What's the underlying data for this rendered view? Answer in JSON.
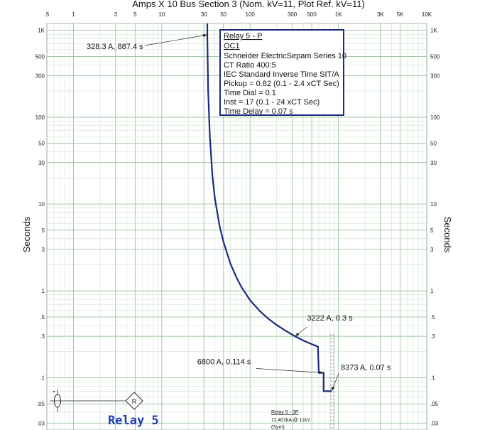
{
  "chart_data": {
    "type": "line",
    "title": "Amps  X  10   Bus Section 3 (Nom. kV=11, Plot Ref. kV=11)",
    "ylabel": "Seconds",
    "x_scale": "log",
    "y_scale": "log",
    "xlim": [
      0.5,
      10000
    ],
    "ylim": [
      0.025,
      1200
    ],
    "grid": true,
    "x_ticks": [
      ".5",
      "1",
      "3",
      "5",
      "10",
      "30",
      "50",
      "100",
      "300",
      "500",
      "1K",
      "3K",
      "5K",
      "10K"
    ],
    "y_ticks": [
      "1K",
      "500",
      "300",
      "100",
      "50",
      "30",
      "10",
      "5",
      "3",
      "1",
      ".5",
      ".3",
      ".1",
      ".05",
      ".03"
    ],
    "y_tick_values": [
      1000,
      500,
      300,
      100,
      50,
      30,
      10,
      5,
      3,
      1,
      0.5,
      0.3,
      0.1,
      0.05,
      0.03
    ],
    "series": [
      {
        "name": "Relay 5 - P",
        "color": "#1a2a80",
        "x_amps": [
          32.8,
          32.8,
          33.5,
          35,
          37.5,
          40,
          45,
          50,
          60,
          70,
          80,
          100,
          130,
          160,
          200,
          250,
          322.2,
          400,
          500,
          587,
          600,
          680,
          680,
          837.3
        ],
        "y_seconds": [
          1200,
          887.4,
          210,
          61,
          21,
          11.5,
          5.7,
          3.65,
          2.05,
          1.43,
          1.1,
          0.78,
          0.58,
          0.48,
          0.405,
          0.35,
          0.3,
          0.268,
          0.243,
          0.228,
          0.114,
          0.114,
          0.07,
          0.07
        ]
      }
    ],
    "annotations": [
      {
        "text": "328.3 A, 887.4 s",
        "x": 32.83,
        "y": 887.4
      },
      {
        "text": "3222 A, 0.3 s",
        "x": 322.2,
        "y": 0.3
      },
      {
        "text": "6800 A, 0.114 s",
        "x": 680,
        "y": 0.114
      },
      {
        "text": "8373 A, 0.07 s",
        "x": 837.3,
        "y": 0.07
      }
    ]
  },
  "relay_info": {
    "title": "Relay 5 - P",
    "element": "OC1",
    "lines": [
      "Schneider ElectricSepam Series 10",
      "CT Ratio 400:5",
      "IEC Standard Inverse Time SIT/A",
      "Pickup = 0.82 (0.1 - 2.4  xCT Sec)",
      "Time Dial = 0.1",
      "Inst = 17 (0.1 - 24  xCT Sec)",
      "Time Delay = 0.07 s"
    ]
  },
  "relay_label": "Relay 5",
  "fault": {
    "title": "Relay 5 - 3P",
    "current": "11.401kA @ 11kV",
    "note": "(Sym)"
  },
  "oneline": {
    "relay_symbol": "R"
  }
}
